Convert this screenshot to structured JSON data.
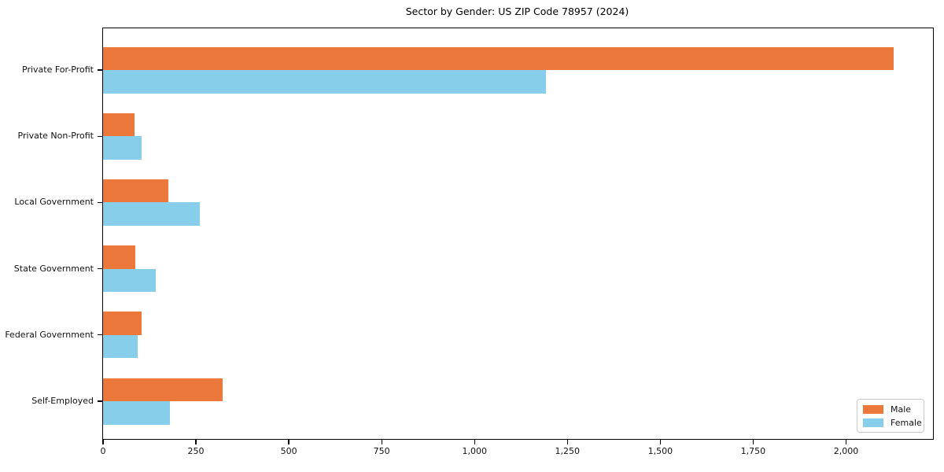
{
  "chart_data": {
    "type": "bar",
    "orientation": "horizontal",
    "title": "Sector by Gender: US ZIP Code 78957 (2024)",
    "categories": [
      "Private For-Profit",
      "Private Non-Profit",
      "Local Government",
      "State Government",
      "Federal Government",
      "Self-Employed"
    ],
    "series": [
      {
        "name": "Male",
        "color": "#EC793B",
        "values": [
          2128,
          85,
          176,
          87,
          104,
          322
        ]
      },
      {
        "name": "Female",
        "color": "#87CEEB",
        "values": [
          1192,
          104,
          260,
          141,
          93,
          179
        ]
      }
    ],
    "xlabel": "",
    "ylabel": "",
    "xlim": [
      0,
      2234
    ],
    "xticks": [
      0,
      250,
      500,
      750,
      1000,
      1250,
      1500,
      1750,
      2000
    ],
    "xtick_labels": [
      "0",
      "250",
      "500",
      "750",
      "1,000",
      "1,250",
      "1,500",
      "1,750",
      "2,000"
    ],
    "legend": {
      "position": "lower right",
      "entries": [
        "Male",
        "Female"
      ]
    },
    "grid": false,
    "axis_color": "#000000",
    "text_color": "#111111",
    "background_color": "#ffffff"
  }
}
